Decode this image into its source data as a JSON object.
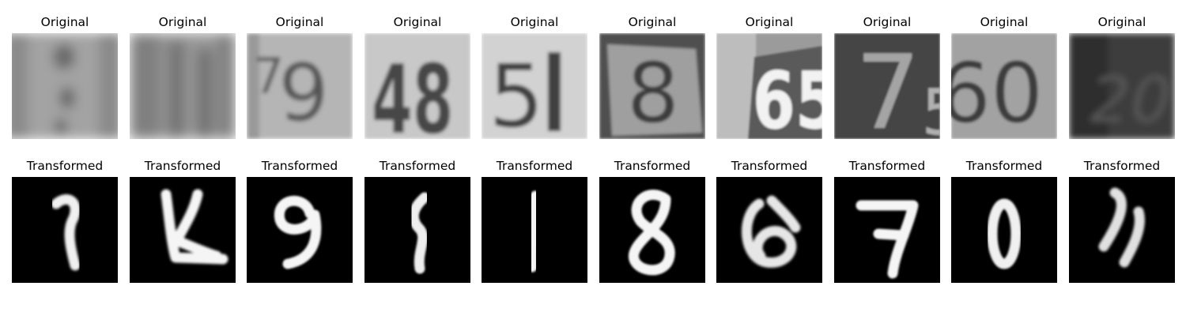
{
  "rows": [
    {
      "id": "original",
      "title": "Original",
      "images": [
        {
          "glyph": "",
          "bg": "#a3a3a3",
          "bg_dark": "#8a8a8a",
          "fg": "#6a6a6a",
          "blur": 7
        },
        {
          "glyph": "",
          "bg": "#979797",
          "bg_dark": "#7f7f7f",
          "fg": "#6e6e6e",
          "blur": 8
        },
        {
          "glyph": "79",
          "bg": "#b5b5b5",
          "bg_dark": "#999999",
          "fg": "#555555",
          "blur": 2.6
        },
        {
          "glyph": "48",
          "bg": "#c8c8c8",
          "bg_dark": "#b0b0b0",
          "fg": "#474747",
          "blur": 2.2
        },
        {
          "glyph": "51",
          "bg": "#d2d2d2",
          "bg_dark": "#bdbdbd",
          "fg": "#3f3f3f",
          "blur": 2
        },
        {
          "glyph": "8",
          "bg": "#9f9f9f",
          "bg_dark": "#4f4f4f",
          "fg": "#3c3c3c",
          "blur": 1.8
        },
        {
          "glyph": "65",
          "bg": "#9b9b9b",
          "bg_dark": "#5a5a5a",
          "fg": "#f2f2f2",
          "blur": 1.4
        },
        {
          "glyph": "7",
          "bg": "#444444",
          "bg_dark": "#353535",
          "fg": "#a4a4a4",
          "blur": 1.3
        },
        {
          "glyph": "60",
          "bg": "#a2a2a2",
          "bg_dark": "#8e8e8e",
          "fg": "#3d3d3d",
          "blur": 1.6
        },
        {
          "glyph": "20",
          "bg": "#3c3c3c",
          "bg_dark": "#2e2e2e",
          "fg": "#555555",
          "blur": 4
        }
      ]
    },
    {
      "id": "transformed",
      "title": "Transformed",
      "images": [
        {
          "glyph": "?",
          "bg": "#000000",
          "fg": "#f0f0f0",
          "blur": 1.6
        },
        {
          "glyph": "K",
          "bg": "#000000",
          "fg": "#f5f5f5",
          "blur": 1.6
        },
        {
          "glyph": "9",
          "bg": "#000000",
          "fg": "#f5f5f5",
          "blur": 1.4
        },
        {
          "glyph": "1",
          "bg": "#000000",
          "fg": "#eeeeee",
          "blur": 1.4
        },
        {
          "glyph": "1",
          "bg": "#000000",
          "fg": "#f5f5f5",
          "blur": 1.3
        },
        {
          "glyph": "8",
          "bg": "#000000",
          "fg": "#f5f5f5",
          "blur": 1.3
        },
        {
          "glyph": "6",
          "bg": "#000000",
          "fg": "#e6e6e6",
          "blur": 1.6
        },
        {
          "glyph": "7",
          "bg": "#000000",
          "fg": "#f5f5f5",
          "blur": 1.3
        },
        {
          "glyph": "0",
          "bg": "#000000",
          "fg": "#f0f0f0",
          "blur": 1.4
        },
        {
          "glyph": "2",
          "bg": "#000000",
          "fg": "#e0e0e0",
          "blur": 1.6
        }
      ]
    }
  ]
}
